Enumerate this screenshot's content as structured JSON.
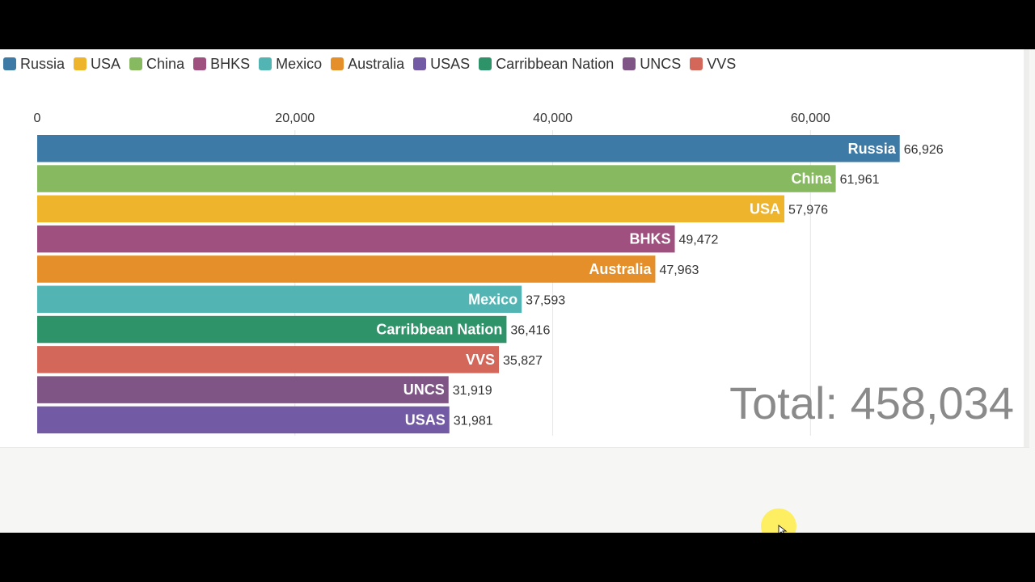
{
  "legend": [
    {
      "name": "Russia",
      "color": "#3e7aa6"
    },
    {
      "name": "USA",
      "color": "#eeb42b"
    },
    {
      "name": "China",
      "color": "#86b960"
    },
    {
      "name": "BHKS",
      "color": "#a0507f"
    },
    {
      "name": "Mexico",
      "color": "#52b4b3"
    },
    {
      "name": "Australia",
      "color": "#e48f2a"
    },
    {
      "name": "USAS",
      "color": "#725aa4"
    },
    {
      "name": "Carribbean Nation",
      "color": "#2f936a"
    },
    {
      "name": "UNCS",
      "color": "#7f5585"
    },
    {
      "name": "VVS",
      "color": "#d3675a"
    }
  ],
  "chart_data": {
    "type": "bar",
    "orientation": "horizontal",
    "xlim": [
      0,
      70000
    ],
    "xticks": [
      0,
      20000,
      40000,
      60000
    ],
    "xtick_labels": [
      "0",
      "20,000",
      "40,000",
      "60,000"
    ],
    "grid": true,
    "legend_position": "top-left",
    "categories": [
      "Russia",
      "China",
      "USA",
      "BHKS",
      "Australia",
      "Mexico",
      "Carribbean Nation",
      "VVS",
      "UNCS",
      "USAS"
    ],
    "values": [
      66926,
      61961,
      57976,
      49472,
      47963,
      37593,
      36416,
      35827,
      31919,
      31981
    ],
    "value_labels": [
      "66,926",
      "61,961",
      "57,976",
      "49,472",
      "47,963",
      "37,593",
      "36,416",
      "35,827",
      "31,919",
      "31,981"
    ],
    "total_label": "Total: 458,034"
  }
}
